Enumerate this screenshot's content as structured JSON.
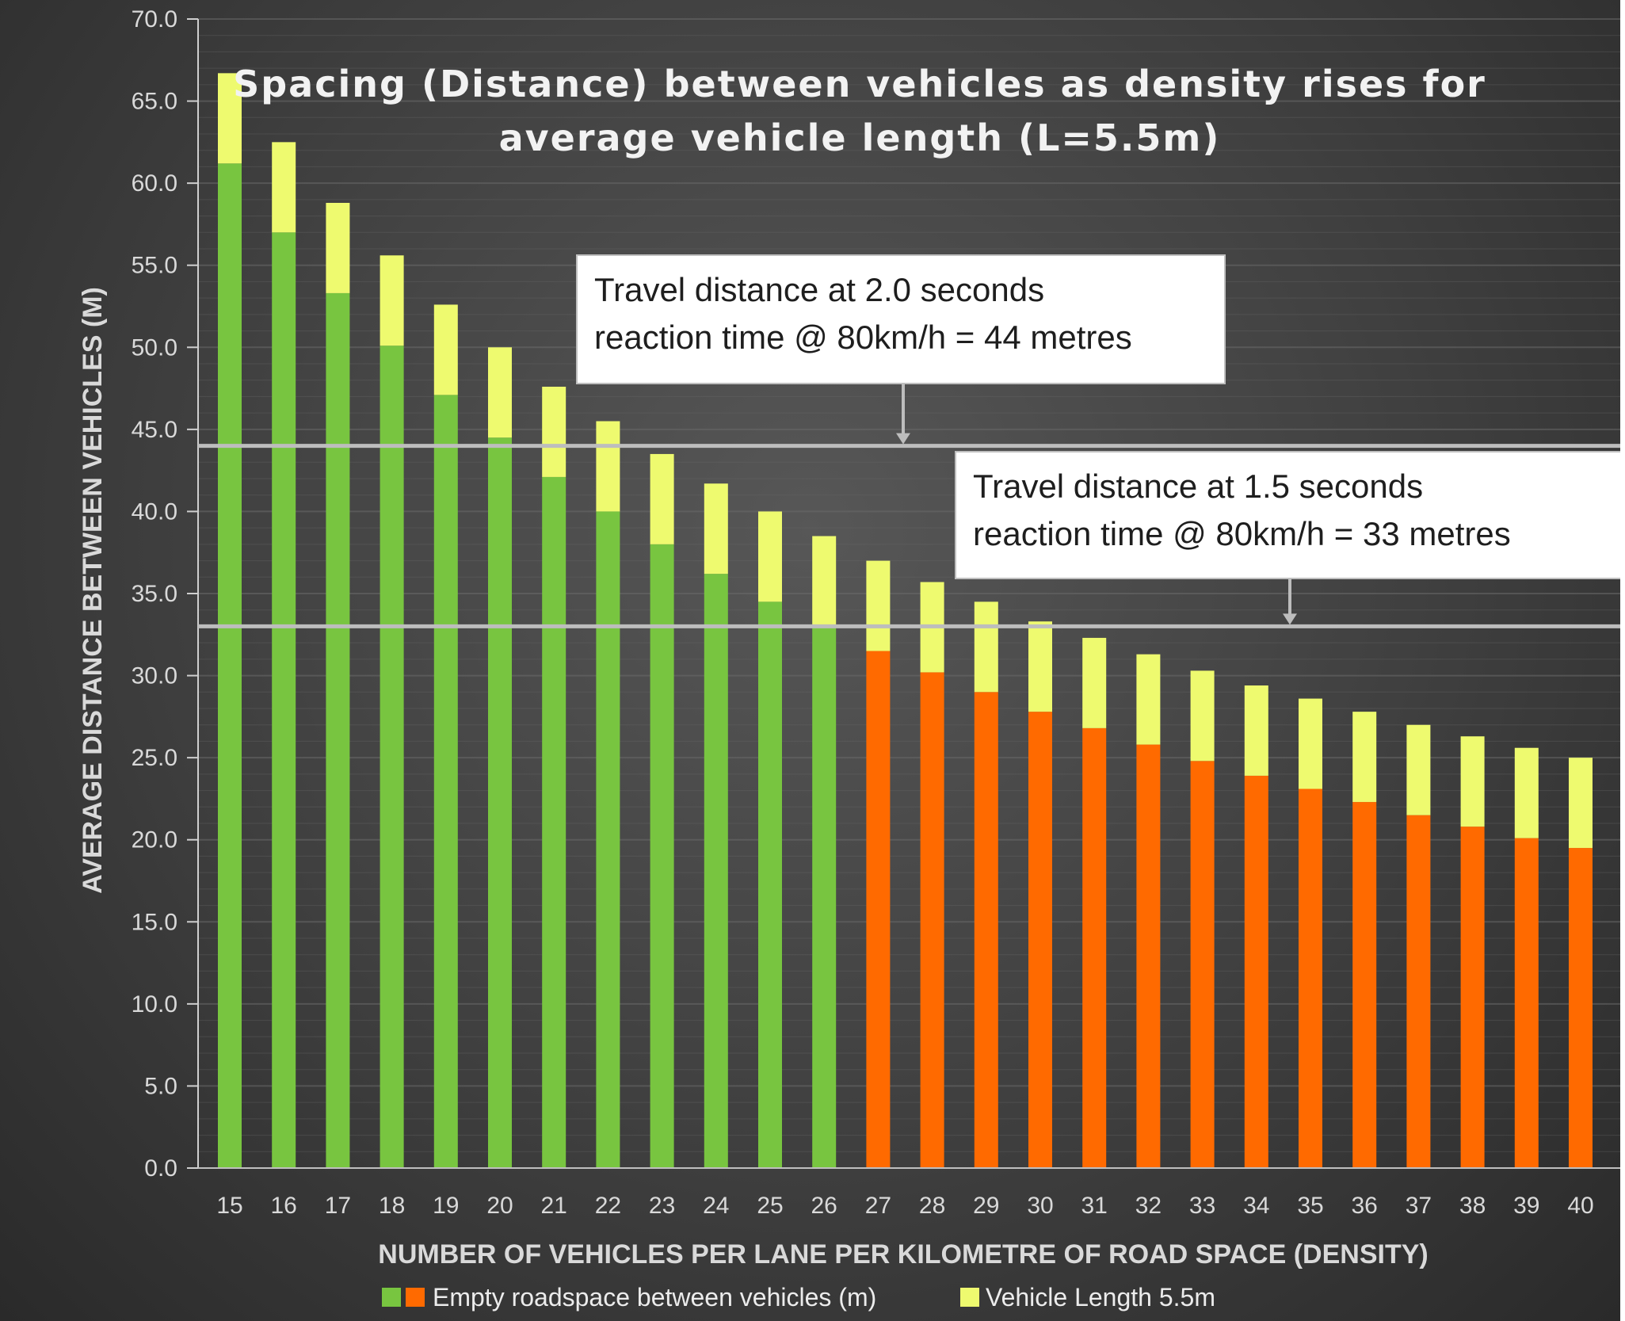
{
  "chart_data": {
    "type": "bar",
    "stacked": true,
    "title": [
      "Spacing (Distance) between vehicles as density rises  for",
      "average vehicle length (L=5.5m)"
    ],
    "xlabel": "NUMBER OF VEHICLES PER LANE PER KILOMETRE OF ROAD SPACE (DENSITY)",
    "ylabel": "AVERAGE DISTANCE BETWEEN VEHICLES (M)",
    "ylim": [
      0,
      70
    ],
    "ytick_step": 5,
    "ytick_labels": [
      "0.0",
      "5.0",
      "10.0",
      "15.0",
      "20.0",
      "25.0",
      "30.0",
      "35.0",
      "40.0",
      "45.0",
      "50.0",
      "55.0",
      "60.0",
      "65.0",
      "70.0"
    ],
    "categories": [
      "15",
      "16",
      "17",
      "18",
      "19",
      "20",
      "21",
      "22",
      "23",
      "24",
      "25",
      "26",
      "27",
      "28",
      "29",
      "30",
      "31",
      "32",
      "33",
      "34",
      "35",
      "36",
      "37",
      "38",
      "39",
      "40"
    ],
    "series": [
      {
        "name": "Empty roadspace between vehicles (m)",
        "values": [
          61.2,
          57.0,
          53.3,
          50.1,
          47.1,
          44.5,
          42.1,
          40.0,
          38.0,
          36.2,
          34.5,
          33.0,
          31.5,
          30.2,
          29.0,
          27.8,
          26.8,
          25.8,
          24.8,
          23.9,
          23.1,
          22.3,
          21.5,
          20.8,
          20.1,
          19.5
        ],
        "threshold": 33,
        "color_above": "#78c540",
        "color_below": "#ff6a00"
      },
      {
        "name": "Vehicle Length 5.5m",
        "values": [
          5.5,
          5.5,
          5.5,
          5.5,
          5.5,
          5.5,
          5.5,
          5.5,
          5.5,
          5.5,
          5.5,
          5.5,
          5.5,
          5.5,
          5.5,
          5.5,
          5.5,
          5.5,
          5.5,
          5.5,
          5.5,
          5.5,
          5.5,
          5.5,
          5.5,
          5.5
        ],
        "color": "#eefa6f"
      }
    ],
    "reference_lines": [
      {
        "value": 44,
        "annotation": [
          "Travel distance at 2.0 seconds",
          "reaction time @ 80km/h = 44 metres"
        ]
      },
      {
        "value": 33,
        "annotation": [
          "Travel distance at 1.5 seconds",
          "reaction time @ 80km/h = 33 metres"
        ]
      }
    ],
    "legend": {
      "position": "bottom",
      "entries": [
        {
          "label": "Empty roadspace between vehicles (m)",
          "colors": [
            "#78c540",
            "#ff6a00"
          ]
        },
        {
          "label": "Vehicle Length 5.5m",
          "colors": [
            "#eefa6f"
          ]
        }
      ]
    },
    "grid": true
  }
}
